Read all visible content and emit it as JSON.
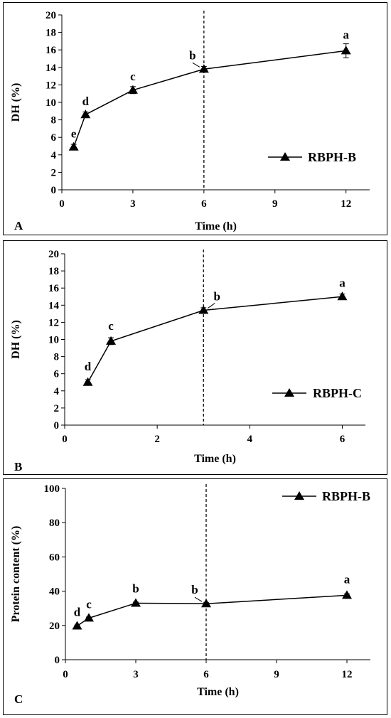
{
  "chart_data": [
    {
      "type": "line",
      "panel_label": "A",
      "xlabel": "Time (h)",
      "ylabel": "DH (%)",
      "xlim": [
        0,
        13
      ],
      "ylim": [
        0,
        20
      ],
      "xticks": [
        "0",
        "3",
        "6",
        "9",
        "12"
      ],
      "yticks": [
        "0",
        "2",
        "4",
        "6",
        "8",
        "10",
        "12",
        "14",
        "16",
        "18",
        "20"
      ],
      "vline_x": 6,
      "legend_position": "bottom-right",
      "series": [
        {
          "name": "RBPH-B",
          "x": [
            0.5,
            1,
            3,
            6,
            12
          ],
          "y": [
            4.9,
            8.6,
            11.4,
            13.8,
            15.9
          ],
          "error": [
            0.3,
            0.3,
            0.4,
            0.3,
            0.8
          ],
          "labels": [
            "e",
            "d",
            "c",
            "b",
            "a"
          ]
        }
      ]
    },
    {
      "type": "line",
      "panel_label": "B",
      "xlabel": "Time (h)",
      "ylabel": "DH (%)",
      "xlim": [
        0,
        6.5
      ],
      "ylim": [
        0,
        20
      ],
      "xticks": [
        "0",
        "2",
        "4",
        "6"
      ],
      "yticks": [
        "0",
        "2",
        "4",
        "6",
        "8",
        "10",
        "12",
        "14",
        "16",
        "18",
        "20"
      ],
      "vline_x": 3,
      "legend_position": "bottom-right",
      "series": [
        {
          "name": "RBPH-C",
          "x": [
            0.5,
            1,
            3,
            6
          ],
          "y": [
            5.0,
            9.8,
            13.4,
            15.0
          ],
          "error": [
            0.3,
            0.4,
            0.3,
            0.3
          ],
          "labels": [
            "d",
            "c",
            "b",
            "a"
          ]
        }
      ]
    },
    {
      "type": "line",
      "panel_label": "C",
      "xlabel": "Time (h)",
      "ylabel": "Protein content (%)",
      "xlim": [
        0,
        13
      ],
      "ylim": [
        0,
        100
      ],
      "xticks": [
        "0",
        "3",
        "6",
        "9",
        "12"
      ],
      "yticks": [
        "0",
        "20",
        "40",
        "60",
        "80",
        "100"
      ],
      "vline_x": 6,
      "legend_position": "top-right",
      "series": [
        {
          "name": "RBPH-B",
          "x": [
            0.5,
            1,
            3,
            6,
            12
          ],
          "y": [
            19.7,
            24.3,
            33.0,
            32.7,
            37.6
          ],
          "error": [
            0.5,
            0.6,
            0.6,
            0.6,
            0.8
          ],
          "labels": [
            "d",
            "c",
            "b",
            "b",
            "a"
          ]
        }
      ]
    }
  ]
}
